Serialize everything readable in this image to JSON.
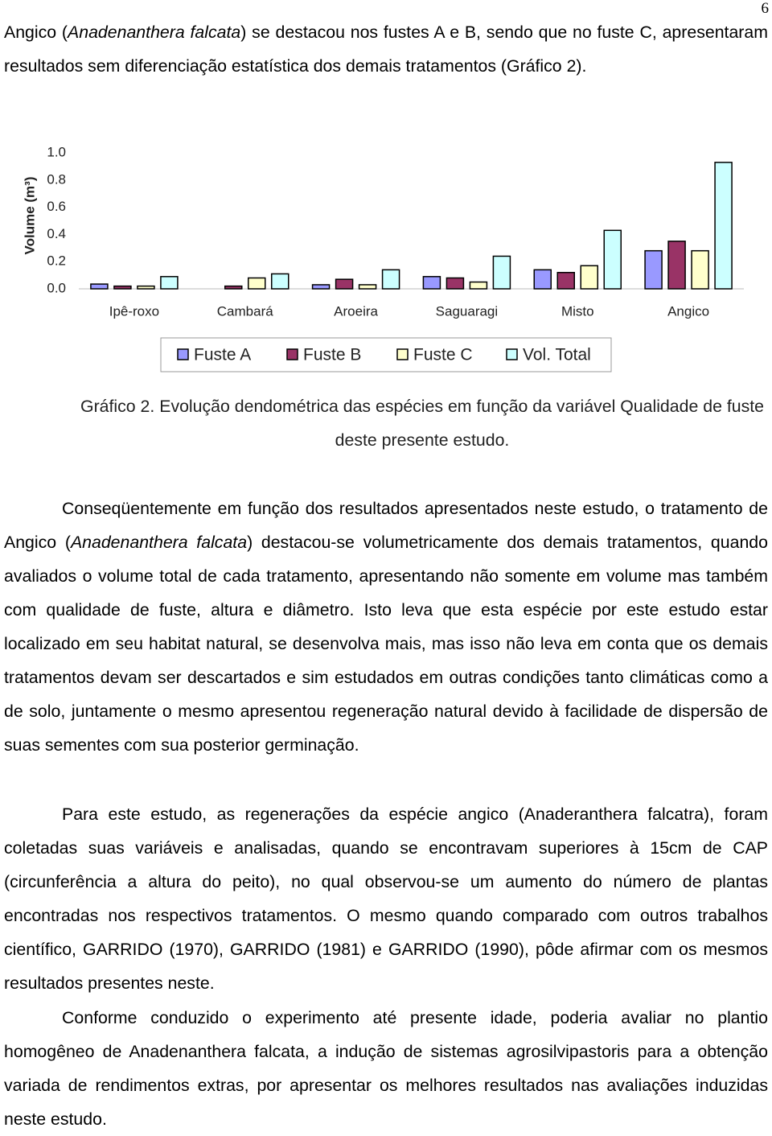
{
  "page_number": "6",
  "paragraphs": [
    {
      "parts": [
        "Angico (",
        "Anadenanthera falcata",
        ") se destacou nos fustes A e B, sendo que no fuste C, apresentaram resultados sem diferenciação estatística dos demais tratamentos (Gráfico 2)."
      ],
      "italic": [
        1
      ]
    },
    {
      "parts": [
        "Conseqüentemente em função dos resultados apresentados neste estudo, o tratamento de Angico (",
        "Anadenanthera falcata",
        ") destacou-se volumetricamente dos demais tratamentos, quando avaliados o volume total de cada tratamento, apresentando não somente em volume mas também com qualidade de fuste, altura e diâmetro. Isto leva que esta espécie por este estudo estar localizado em seu habitat natural, se desenvolva mais, mas isso não leva em conta que os demais tratamentos devam ser descartados e sim estudados em outras condições tanto climáticas como a de solo, juntamente o mesmo apresentou regeneração natural devido à facilidade de dispersão de suas sementes com sua posterior germinação."
      ],
      "italic": [
        1
      ]
    },
    {
      "parts": [
        "Para este estudo, as regenerações da espécie angico (Anaderanthera falcatra), foram coletadas suas variáveis e analisadas, quando se encontravam superiores à 15cm de CAP (circunferência a altura do peito), no qual observou-se um aumento do número de plantas encontradas nos respectivos tratamentos. O mesmo quando comparado com outros trabalhos científico, GARRIDO (1970), GARRIDO (1981) e GARRIDO (1990), pôde afirmar com os mesmos resultados presentes neste."
      ],
      "italic": []
    },
    {
      "parts": [
        "Conforme conduzido o experimento até presente idade, poderia avaliar no plantio homogêneo de Anadenanthera falcata, a indução de sistemas agrosilvipastoris para a obtenção variada de rendimentos extras, por apresentar os melhores resultados nas avaliações induzidas neste estudo."
      ],
      "italic": []
    }
  ],
  "caption": "Gráfico 2. Evolução dendométrica das espécies em função da variável Qualidade de fuste deste presente estudo.",
  "chart_data": {
    "type": "bar",
    "y_label": "Volume (m³)",
    "categories": [
      "Ipê-roxo",
      "Cambará",
      "Aroeira",
      "Saguaragi",
      "Misto",
      "Angico"
    ],
    "series": [
      {
        "name": "Fuste A",
        "color": "#9999ff",
        "values": [
          0.035,
          0,
          0.03,
          0.09,
          0.14,
          0.28
        ]
      },
      {
        "name": "Fuste B",
        "color": "#993366",
        "values": [
          0.02,
          0.02,
          0.07,
          0.08,
          0.12,
          0.35
        ]
      },
      {
        "name": "Fuste C",
        "color": "#ffffcc",
        "values": [
          0.02,
          0.08,
          0.03,
          0.05,
          0.17,
          0.28
        ]
      },
      {
        "name": "Vol. Total",
        "color": "#ccffff",
        "values": [
          0.09,
          0.11,
          0.14,
          0.24,
          0.43,
          0.93
        ]
      }
    ],
    "ylim": [
      0,
      1
    ],
    "yticks": [
      {
        "value": 0,
        "label": "0.0"
      },
      {
        "value": 0.2,
        "label": "0.2"
      },
      {
        "value": 0.4,
        "label": "0.4"
      },
      {
        "value": 0.6,
        "label": "0.6"
      },
      {
        "value": 0.8,
        "label": "0.8"
      },
      {
        "value": 1,
        "label": "1.0"
      }
    ],
    "grid": false,
    "legend": "bottom"
  }
}
